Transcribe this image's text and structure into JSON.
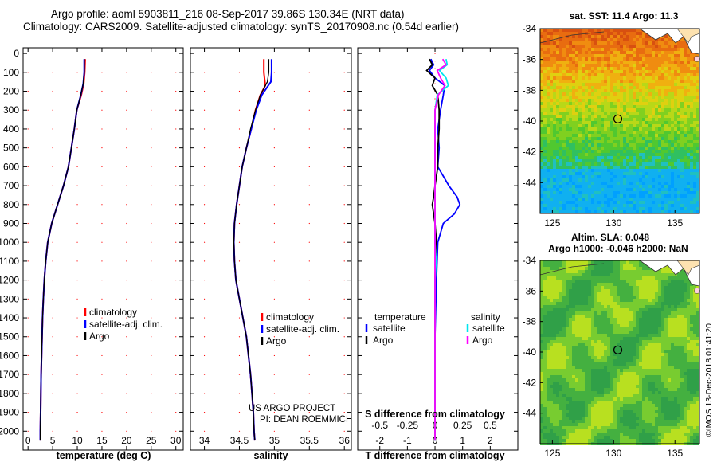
{
  "header": {
    "line1": "Argo profile: aoml 5903811_216 08-Sep-2017 39.86S 130.34E (NRT data)",
    "line2": "Climatology: CARS2009. Satellite-adjusted climatology: synTS_20170908.nc (0.54d earlier)"
  },
  "colors": {
    "climatology": "#ff0000",
    "satellite": "#0000ff",
    "argo": "#000000",
    "argo_s": "#ff00ff",
    "sat_s": "#00e5ee"
  },
  "chart_data": [
    {
      "id": "temperature",
      "type": "line",
      "xlabel": "temperature (deg C)",
      "xlim": [
        -1,
        31.5
      ],
      "xticks": [
        0,
        5,
        10,
        15,
        20,
        25,
        30
      ],
      "ylim": [
        2100,
        -30
      ],
      "yticks": [
        0,
        100,
        200,
        300,
        400,
        500,
        600,
        700,
        800,
        900,
        1000,
        1100,
        1200,
        1300,
        1400,
        1500,
        1600,
        1700,
        1800,
        1900,
        2000
      ],
      "legend": [
        "climatology",
        "satellite-adj. clim.",
        "Argo"
      ],
      "series": [
        {
          "name": "climatology",
          "color": "#ff0000",
          "depth": [
            30,
            100,
            160,
            220,
            300,
            400,
            500,
            600,
            700,
            800,
            900,
            1000,
            1100,
            1200,
            1300,
            1400,
            1500,
            1600,
            1700,
            1800,
            1900,
            2000,
            2050
          ],
          "values": [
            11.6,
            11.5,
            11.3,
            10.8,
            9.9,
            9.4,
            8.8,
            8.2,
            7.2,
            6.0,
            4.8,
            4.0,
            3.6,
            3.3,
            3.1,
            2.95,
            2.85,
            2.75,
            2.65,
            2.6,
            2.55,
            2.5,
            2.5
          ]
        },
        {
          "name": "satellite-adj. clim.",
          "color": "#0000ff",
          "depth": [
            30,
            100,
            160,
            220,
            300,
            400,
            500,
            600,
            700,
            800,
            900,
            1000,
            1100,
            1200,
            1300,
            1400,
            1500,
            1600,
            1700,
            1800,
            1900,
            2000,
            2050
          ],
          "values": [
            11.4,
            11.4,
            11.2,
            10.7,
            9.9,
            9.4,
            8.8,
            8.2,
            7.2,
            6.0,
            4.8,
            4.0,
            3.6,
            3.3,
            3.1,
            2.95,
            2.85,
            2.75,
            2.65,
            2.6,
            2.55,
            2.5,
            2.5
          ]
        },
        {
          "name": "Argo",
          "color": "#000000",
          "depth": [
            30,
            100,
            160,
            220,
            300,
            400,
            500,
            600,
            700,
            800,
            900,
            1000,
            1100,
            1200,
            1300,
            1400,
            1500,
            1600,
            1700,
            1800,
            1900,
            2000,
            2050
          ],
          "values": [
            11.4,
            11.4,
            11.2,
            10.7,
            9.9,
            9.4,
            8.8,
            8.2,
            7.2,
            6.0,
            4.8,
            4.0,
            3.6,
            3.3,
            3.1,
            2.95,
            2.85,
            2.75,
            2.65,
            2.6,
            2.55,
            2.5,
            2.5
          ]
        }
      ]
    },
    {
      "id": "salinity",
      "type": "line",
      "xlabel": "salinity",
      "xlim": [
        33.8,
        36.1
      ],
      "xticks": [
        34,
        34.5,
        35,
        35.5,
        36
      ],
      "ylim": [
        2100,
        -30
      ],
      "yticks": [
        0,
        100,
        200,
        300,
        400,
        500,
        600,
        700,
        800,
        900,
        1000,
        1100,
        1200,
        1300,
        1400,
        1500,
        1600,
        1700,
        1800,
        1900,
        2000
      ],
      "legend": [
        "climatology",
        "satellite-adj. clim.",
        "Argo"
      ],
      "credits": [
        "US ARGO PROJECT",
        "PI: DEAN ROEMMICH"
      ],
      "series": [
        {
          "name": "climatology",
          "color": "#ff0000",
          "depth": [
            30,
            100,
            170,
            220,
            300,
            400,
            500,
            600,
            700,
            800,
            900,
            1000,
            1100,
            1200,
            1300,
            1400,
            1500,
            1600,
            1700,
            1800,
            1900,
            2000,
            2050
          ],
          "values": [
            34.85,
            34.85,
            34.87,
            34.8,
            34.73,
            34.67,
            34.6,
            34.54,
            34.5,
            34.46,
            34.43,
            34.42,
            34.43,
            34.45,
            34.5,
            34.55,
            34.6,
            34.63,
            34.66,
            34.68,
            34.7,
            34.71,
            34.72
          ]
        },
        {
          "name": "satellite-adj. clim.",
          "color": "#0000ff",
          "depth": [
            30,
            100,
            150,
            220,
            300,
            400,
            500,
            600,
            700,
            800,
            900,
            1000,
            1100,
            1200,
            1300,
            1400,
            1500,
            1600,
            1700,
            1800,
            1900,
            2000,
            2050
          ],
          "values": [
            34.96,
            34.96,
            34.95,
            34.82,
            34.74,
            34.67,
            34.6,
            34.54,
            34.5,
            34.46,
            34.43,
            34.42,
            34.43,
            34.45,
            34.5,
            34.55,
            34.6,
            34.63,
            34.66,
            34.68,
            34.7,
            34.71,
            34.72
          ]
        },
        {
          "name": "Argo",
          "color": "#000000",
          "depth": [
            30,
            100,
            150,
            220,
            300,
            400,
            500,
            600,
            700,
            800,
            900,
            1000,
            1100,
            1200,
            1300,
            1400,
            1500,
            1600,
            1700,
            1800,
            1900,
            2000,
            2050
          ],
          "values": [
            34.92,
            34.92,
            34.9,
            34.8,
            34.73,
            34.66,
            34.6,
            34.54,
            34.5,
            34.46,
            34.43,
            34.42,
            34.43,
            34.45,
            34.5,
            34.55,
            34.6,
            34.63,
            34.66,
            34.68,
            34.7,
            34.71,
            34.72
          ]
        }
      ]
    },
    {
      "id": "difference",
      "type": "line",
      "xlabel": "T difference from climatology",
      "xlabel2": "S difference from climatology",
      "xlim": [
        -2.8,
        3.0
      ],
      "xticks": [
        -2,
        -1,
        0,
        1,
        2
      ],
      "xticks_s": [
        -0.5,
        -0.25,
        0,
        0.25,
        0.5
      ],
      "xticks_s_labels": [
        "-0.5",
        "-0.25",
        "0",
        "0.25",
        "0.5"
      ],
      "ylim": [
        2100,
        -30
      ],
      "legend_left_title": "temperature",
      "legend_right_title": "salinity",
      "legend_left": [
        "satellite",
        "Argo"
      ],
      "legend_right": [
        "satellite",
        "Argo"
      ],
      "series": [
        {
          "name": "T satellite",
          "color": "#0000ff",
          "depth": [
            30,
            60,
            90,
            130,
            170,
            220,
            300,
            400,
            500,
            600,
            700,
            760,
            800,
            850,
            900,
            1000,
            1200,
            1500,
            1800,
            2050
          ],
          "values": [
            -0.15,
            -0.05,
            -0.2,
            0.0,
            0.35,
            0.3,
            0.2,
            0.1,
            0.15,
            0.1,
            0.5,
            0.8,
            0.9,
            0.7,
            0.3,
            0.1,
            0.05,
            0.0,
            0.0,
            0.0
          ]
        },
        {
          "name": "T Argo",
          "color": "#000000",
          "depth": [
            30,
            60,
            90,
            130,
            170,
            220,
            300,
            400,
            500,
            600,
            700,
            760,
            800,
            850,
            900,
            1000,
            1200,
            1500,
            1800,
            2050
          ],
          "values": [
            -0.2,
            -0.1,
            -0.3,
            0.0,
            -0.1,
            0.1,
            0.15,
            0.15,
            0.1,
            0.1,
            0.0,
            -0.05,
            -0.1,
            -0.05,
            0.0,
            0.05,
            0.0,
            0.0,
            0.0,
            0.0
          ]
        },
        {
          "name": "S satellite",
          "color": "#00e5ee",
          "scale": "salinity",
          "depth": [
            30,
            60,
            90,
            130,
            170,
            220,
            300,
            400,
            500,
            600,
            700,
            800,
            900,
            1000,
            1100,
            1200,
            1300,
            1400,
            1500,
            1600,
            1700,
            1800,
            1900,
            2000,
            2050
          ],
          "values": [
            0.1,
            0.11,
            0.04,
            0.1,
            0.12,
            0.02,
            0.0,
            0.0,
            0.0,
            0.0,
            0.0,
            0.0,
            0.0,
            0.0,
            0.01,
            0.0,
            0.0,
            0.0,
            0.0,
            0.0,
            0.0,
            0.0,
            0.0,
            0.0,
            0.0
          ]
        },
        {
          "name": "S Argo",
          "color": "#ff00ff",
          "scale": "salinity",
          "depth": [
            30,
            60,
            90,
            130,
            170,
            220,
            300,
            400,
            500,
            600,
            700,
            800,
            900,
            1000,
            1100,
            1200,
            1300,
            1400,
            1500,
            1600,
            1700,
            1800,
            1900,
            2000,
            2050
          ],
          "values": [
            0.07,
            0.1,
            0.02,
            0.05,
            0.09,
            0.03,
            0.0,
            0.0,
            0.0,
            0.0,
            0.0,
            0.0,
            0.0,
            0.0,
            0.0,
            0.0,
            0.0,
            0.0,
            0.0,
            0.0,
            0.0,
            0.0,
            0.0,
            0.0,
            0.0
          ]
        }
      ]
    },
    {
      "id": "sst_map",
      "type": "heatmap",
      "title": "sat. SST: 11.4 Argo: 11.3",
      "xlim": [
        124,
        137
      ],
      "ylim": [
        -46,
        -34
      ],
      "xticks": [
        125,
        130,
        135
      ],
      "yticks": [
        -34,
        -36,
        -38,
        -40,
        -42,
        -44
      ],
      "marker": {
        "lon": 130.34,
        "lat": -39.86
      }
    },
    {
      "id": "sla_map",
      "type": "heatmap",
      "title": "Altim. SLA: 0.048",
      "subtitle": "Argo h1000: -0.046 h2000: NaN",
      "xlim": [
        124,
        137
      ],
      "ylim": [
        -46,
        -34
      ],
      "xticks": [
        125,
        130,
        135
      ],
      "yticks": [
        -34,
        -36,
        -38,
        -40,
        -42,
        -44
      ],
      "marker": {
        "lon": 130.34,
        "lat": -39.86
      }
    }
  ],
  "watermark": "©IMOS 13-Dec-2018 01:41:20"
}
